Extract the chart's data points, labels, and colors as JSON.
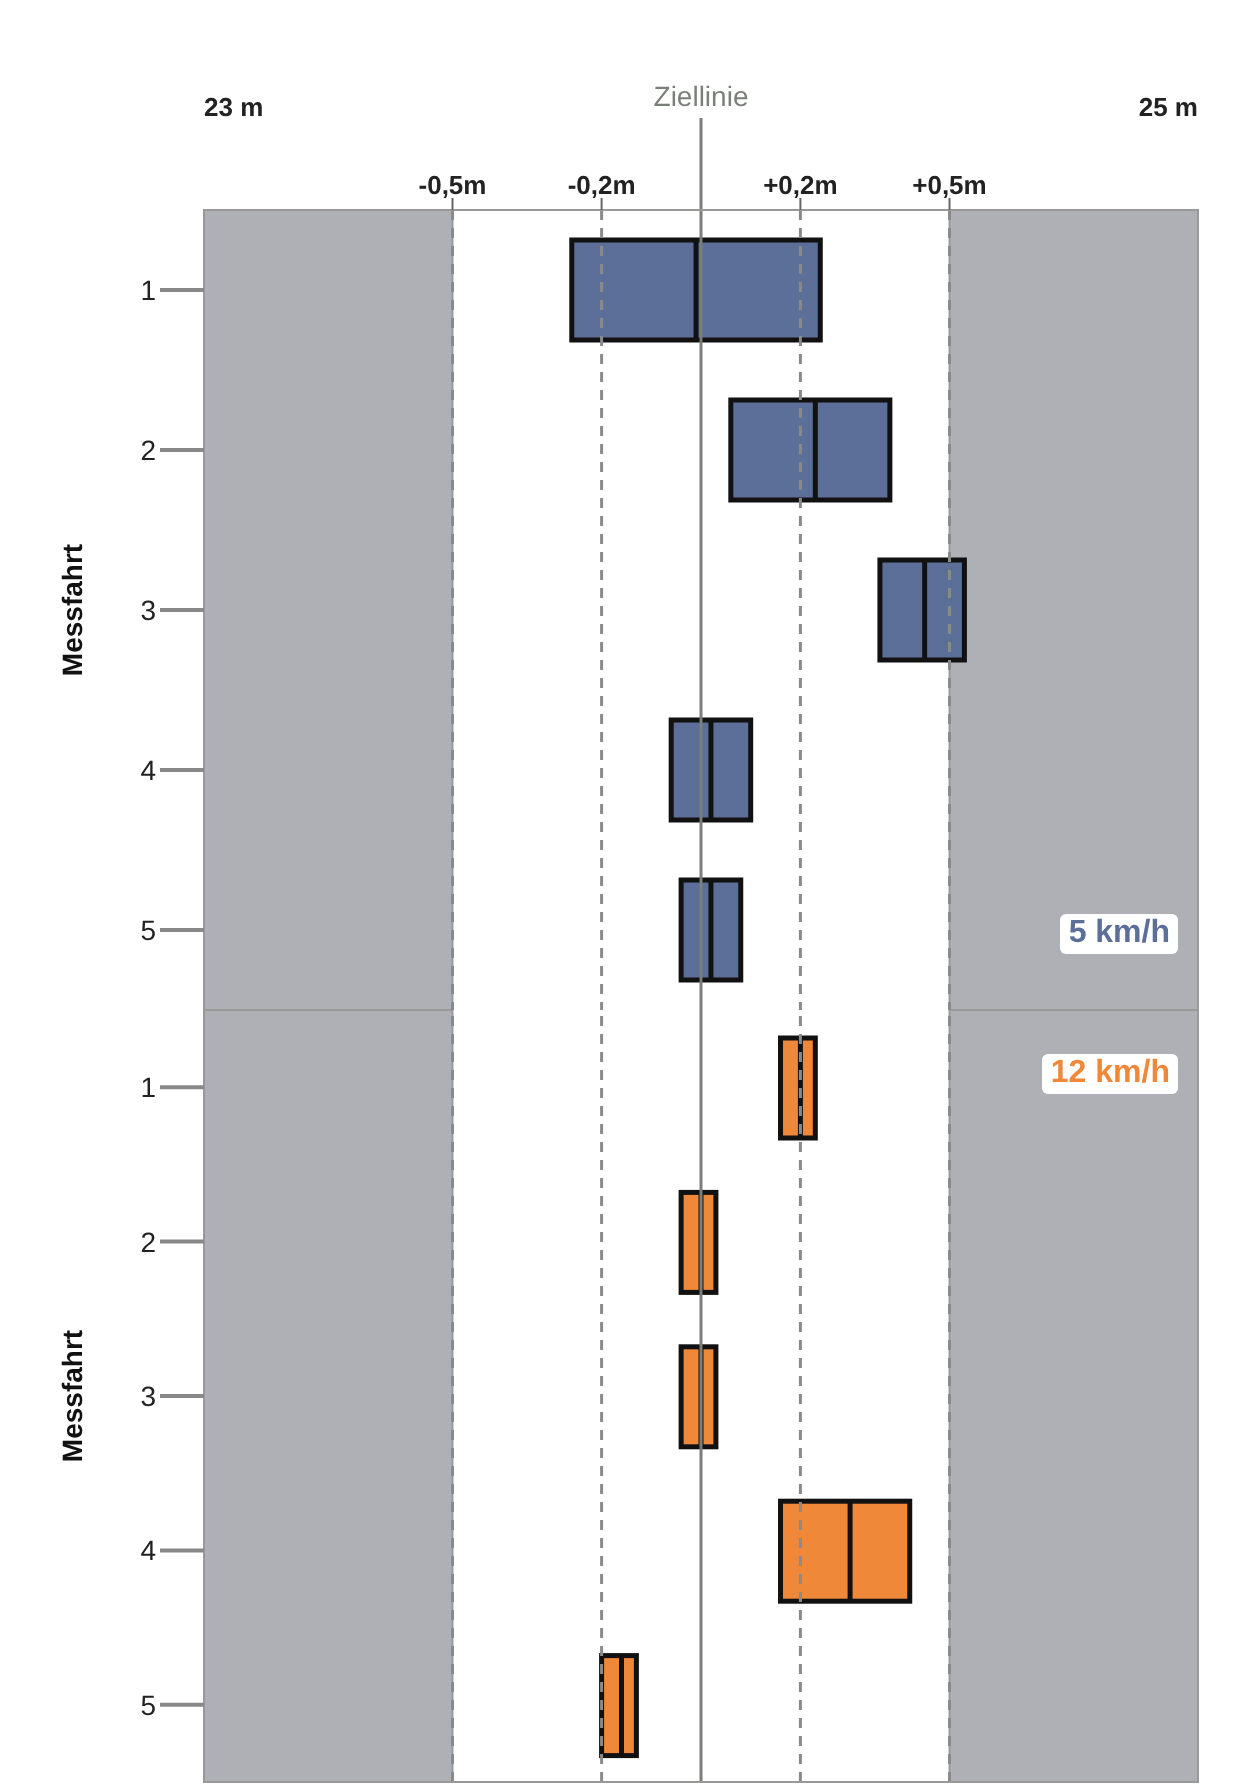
{
  "chart_data": [
    {
      "type": "box",
      "orientation": "horizontal",
      "ylabel": "Messfahrt",
      "categories": [
        "1",
        "2",
        "3",
        "4",
        "5"
      ],
      "xlim": [
        -1,
        1
      ],
      "xticks": [
        {
          "value": -0.5,
          "label": "-0,5m"
        },
        {
          "value": -0.2,
          "label": "-0,2m"
        },
        {
          "value": 0.2,
          "label": "+0,2m"
        },
        {
          "value": 0.5,
          "label": "+0,5m"
        }
      ],
      "grid": "x",
      "annotations": [
        "23 m",
        "25 m"
      ],
      "bands": [
        {
          "axis": "x",
          "from": -1,
          "to": -0.5,
          "color": "#aeb0b5"
        },
        {
          "axis": "x",
          "from": 0.5,
          "to": 1,
          "color": "#aeb0b5"
        }
      ],
      "ref_lines": [
        {
          "axis": "x",
          "value": 0,
          "label": "Ziellinie",
          "color": "#7a7f7a"
        }
      ],
      "series": [
        {
          "name": "5 km/h",
          "color": "#5b6f99",
          "boxes": [
            {
              "low": -0.26,
              "q1": -0.26,
              "median": -0.01,
              "q3": 0.24,
              "high": 0.24
            },
            {
              "low": 0.06,
              "q1": 0.06,
              "median": 0.23,
              "q3": 0.38,
              "high": 0.38
            },
            {
              "low": 0.36,
              "q1": 0.36,
              "median": 0.45,
              "q3": 0.53,
              "high": 0.53
            },
            {
              "low": -0.06,
              "q1": -0.06,
              "median": 0.02,
              "q3": 0.1,
              "high": 0.1
            },
            {
              "low": -0.04,
              "q1": -0.04,
              "median": 0.02,
              "q3": 0.08,
              "high": 0.08
            }
          ]
        }
      ]
    },
    {
      "type": "box",
      "orientation": "horizontal",
      "ylabel": "Messfahrt",
      "categories": [
        "1",
        "2",
        "3",
        "4",
        "5"
      ],
      "xlim": [
        -1,
        1
      ],
      "xticks": [
        -0.5,
        -0.2,
        0.2,
        0.5
      ],
      "tick_labels": "y",
      "grid": "x",
      "bands": [
        {
          "axis": "x",
          "from": -1,
          "to": -0.5,
          "color": "#aeb0b5"
        },
        {
          "axis": "x",
          "from": 0.5,
          "to": 1,
          "color": "#aeb0b5"
        }
      ],
      "ref_lines": [
        {
          "axis": "x",
          "value": 0,
          "color": "#7a7f7a"
        }
      ],
      "series": [
        {
          "name": "12 km/h",
          "color": "#f0883a",
          "boxes": [
            {
              "low": 0.16,
              "q1": 0.16,
              "median": 0.2,
              "q3": 0.23,
              "high": 0.23
            },
            {
              "low": -0.04,
              "q1": -0.04,
              "median": 0,
              "q3": 0.03,
              "high": 0.03
            },
            {
              "low": -0.04,
              "q1": -0.04,
              "median": 0,
              "q3": 0.03,
              "high": 0.03
            },
            {
              "low": 0.16,
              "q1": 0.16,
              "median": 0.3,
              "q3": 0.42,
              "high": 0.42
            },
            {
              "low": -0.2,
              "q1": -0.2,
              "median": -0.16,
              "q3": -0.13,
              "high": -0.13
            }
          ]
        }
      ]
    }
  ]
}
